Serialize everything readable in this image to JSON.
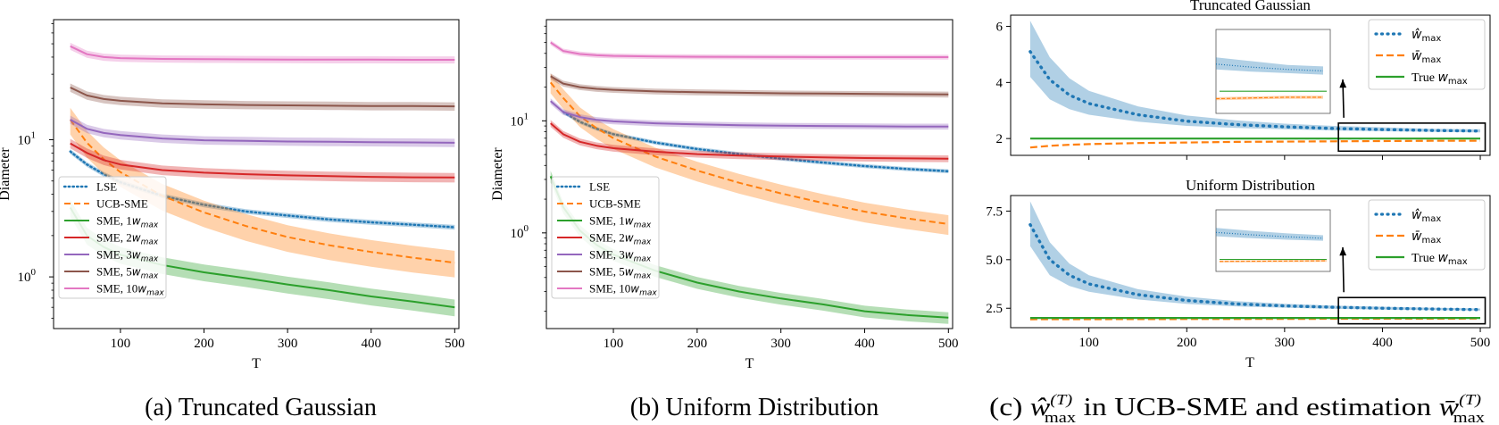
{
  "panels": [
    {
      "id": "a",
      "caption": "(a) Truncated Gaussian",
      "chart_data": {
        "type": "line",
        "yscale": "log",
        "xlabel": "T",
        "ylabel": "Diameter",
        "xlim": [
          20,
          505
        ],
        "ylim": [
          0.42,
          75
        ],
        "xticks": [
          100,
          200,
          300,
          400,
          500
        ],
        "yticks": [
          {
            "value": 1,
            "label": "10",
            "exp": "0"
          },
          {
            "value": 10,
            "label": "10",
            "exp": "1"
          }
        ],
        "series": [
          {
            "name": "LSE",
            "style": "dotted",
            "color": "#1f77b4",
            "x": [
              40,
              60,
              80,
              100,
              150,
              200,
              250,
              300,
              350,
              400,
              450,
              500
            ],
            "y": [
              8.2,
              6.6,
              5.6,
              4.9,
              3.9,
              3.35,
              3.0,
              2.8,
              2.62,
              2.5,
              2.4,
              2.3
            ],
            "band": 0.04
          },
          {
            "name": "UCB-SME",
            "style": "dashed",
            "color": "#ff7f0e",
            "x": [
              40,
              60,
              80,
              100,
              150,
              200,
              250,
              300,
              350,
              400,
              450,
              500
            ],
            "y": [
              14.0,
              9.5,
              7.2,
              5.8,
              3.9,
              2.95,
              2.35,
              1.95,
              1.7,
              1.52,
              1.38,
              1.27
            ],
            "band": 0.22
          },
          {
            "name": "SME, 1",
            "style": "solid",
            "color": "#2ca02c",
            "x": [
              40,
              60,
              80,
              100,
              150,
              200,
              250,
              300,
              350,
              400,
              450,
              500
            ],
            "y": [
              3.2,
              2.0,
              1.65,
              1.45,
              1.22,
              1.08,
              0.98,
              0.88,
              0.8,
              0.72,
              0.66,
              0.6
            ],
            "band": 0.14
          },
          {
            "name": "SME, 2",
            "style": "solid",
            "color": "#d62728",
            "x": [
              40,
              60,
              80,
              100,
              150,
              200,
              250,
              300,
              350,
              400,
              450,
              500
            ],
            "y": [
              9.4,
              8.0,
              7.1,
              6.6,
              6.0,
              5.75,
              5.6,
              5.5,
              5.42,
              5.36,
              5.32,
              5.3
            ],
            "band": 0.08
          },
          {
            "name": "SME, 3",
            "style": "solid",
            "color": "#9467bd",
            "x": [
              40,
              60,
              80,
              100,
              150,
              200,
              250,
              300,
              350,
              400,
              450,
              500
            ],
            "y": [
              14.0,
              12.0,
              11.2,
              10.8,
              10.2,
              9.9,
              9.8,
              9.7,
              9.65,
              9.6,
              9.55,
              9.5
            ],
            "band": 0.07
          },
          {
            "name": "SME, 5",
            "style": "solid",
            "color": "#8c564b",
            "x": [
              40,
              60,
              80,
              100,
              150,
              200,
              250,
              300,
              350,
              400,
              450,
              500
            ],
            "y": [
              24.0,
              21.0,
              19.8,
              19.2,
              18.4,
              18.1,
              17.9,
              17.8,
              17.7,
              17.6,
              17.6,
              17.5
            ],
            "band": 0.07
          },
          {
            "name": "SME, 10",
            "style": "solid",
            "color": "#e377c2",
            "x": [
              40,
              60,
              80,
              100,
              150,
              200,
              250,
              300,
              350,
              400,
              450,
              500
            ],
            "y": [
              48.0,
              42.0,
              40.0,
              39.3,
              38.8,
              38.6,
              38.5,
              38.4,
              38.3,
              38.3,
              38.2,
              38.2
            ],
            "band": 0.06
          }
        ],
        "legend": {
          "position": "lower-left"
        }
      }
    },
    {
      "id": "b",
      "caption": "(b) Uniform Distribution",
      "chart_data": {
        "type": "line",
        "yscale": "log",
        "xlabel": "T",
        "ylabel": "Diameter",
        "xlim": [
          20,
          505
        ],
        "ylim": [
          0.14,
          80
        ],
        "xticks": [
          100,
          200,
          300,
          400,
          500
        ],
        "yticks": [
          {
            "value": 1,
            "label": "10",
            "exp": "0"
          },
          {
            "value": 10,
            "label": "10",
            "exp": "1"
          }
        ],
        "series": [
          {
            "name": "LSE",
            "style": "dotted",
            "color": "#1f77b4",
            "x": [
              40,
              60,
              80,
              100,
              150,
              200,
              250,
              300,
              350,
              400,
              450,
              500
            ],
            "y": [
              12.0,
              9.8,
              8.5,
              7.6,
              6.4,
              5.6,
              5.05,
              4.6,
              4.25,
              3.95,
              3.72,
              3.55
            ],
            "band": 0.04
          },
          {
            "name": "UCB-SME",
            "style": "dashed",
            "color": "#ff7f0e",
            "x": [
              25,
              40,
              60,
              80,
              100,
              150,
              200,
              250,
              300,
              350,
              400,
              450,
              500
            ],
            "y": [
              22.0,
              16.0,
              11.0,
              8.6,
              7.0,
              4.8,
              3.6,
              2.8,
              2.25,
              1.85,
              1.55,
              1.35,
              1.2
            ],
            "band": 0.2
          },
          {
            "name": "SME, 1",
            "style": "solid",
            "color": "#2ca02c",
            "x": [
              25,
              40,
              60,
              80,
              100,
              150,
              200,
              250,
              300,
              350,
              400,
              450,
              500
            ],
            "y": [
              3.2,
              1.7,
              1.05,
              0.78,
              0.64,
              0.46,
              0.36,
              0.3,
              0.26,
              0.23,
              0.2,
              0.185,
              0.175
            ],
            "band": 0.12
          },
          {
            "name": "SME, 2",
            "style": "solid",
            "color": "#d62728",
            "x": [
              25,
              40,
              60,
              80,
              100,
              150,
              200,
              250,
              300,
              350,
              400,
              450,
              500
            ],
            "y": [
              9.5,
              7.6,
              6.5,
              6.0,
              5.7,
              5.3,
              5.05,
              4.9,
              4.8,
              4.72,
              4.66,
              4.62,
              4.6
            ],
            "band": 0.07
          },
          {
            "name": "SME, 3",
            "style": "solid",
            "color": "#9467bd",
            "x": [
              25,
              40,
              60,
              80,
              100,
              150,
              200,
              250,
              300,
              350,
              400,
              450,
              500
            ],
            "y": [
              15.0,
              12.0,
              10.8,
              10.2,
              9.9,
              9.5,
              9.3,
              9.15,
              9.05,
              9.0,
              8.95,
              8.9,
              8.9
            ],
            "band": 0.06
          },
          {
            "name": "SME, 5",
            "style": "solid",
            "color": "#8c564b",
            "x": [
              25,
              40,
              60,
              80,
              100,
              150,
              200,
              250,
              300,
              350,
              400,
              450,
              500
            ],
            "y": [
              25.0,
              21.5,
              20.0,
              19.3,
              18.9,
              18.3,
              18.0,
              17.8,
              17.6,
              17.5,
              17.4,
              17.3,
              17.2
            ],
            "band": 0.06
          },
          {
            "name": "SME, 10",
            "style": "solid",
            "color": "#e377c2",
            "x": [
              25,
              40,
              60,
              80,
              100,
              150,
              200,
              250,
              300,
              350,
              400,
              450,
              500
            ],
            "y": [
              50.0,
              42.0,
              39.5,
              38.5,
              38.0,
              37.5,
              37.3,
              37.2,
              37.1,
              37.0,
              37.0,
              37.0,
              37.0
            ],
            "band": 0.05
          }
        ],
        "legend": {
          "position": "lower-left"
        }
      }
    }
  ],
  "legend_labels": [
    "LSE",
    "UCB-SME",
    "SME, 1",
    "SME, 2",
    "SME, 3",
    "SME, 5",
    "SME, 10"
  ],
  "legend_wmax": [
    "w",
    "max"
  ],
  "panel_c": {
    "caption": [
      "(c) ",
      "ŵ",
      "(T)",
      "max",
      " in UCB-SME and estimation ",
      "w̄",
      "(T)",
      "max"
    ],
    "xlabel": "T",
    "xticks": [
      100,
      200,
      300,
      400,
      500
    ],
    "chart_data": [
      {
        "type": "line",
        "title": "Truncated Gaussian",
        "xlim": [
          20,
          510
        ],
        "ylim": [
          1.4,
          6.4
        ],
        "yticks": [
          2,
          4,
          6
        ],
        "ytick_labels": [
          "2",
          "4",
          "6"
        ],
        "series": [
          {
            "name": "ŵmax",
            "style": "dotted",
            "color": "#1f77b4",
            "x": [
              40,
              60,
              80,
              100,
              150,
              200,
              250,
              300,
              350,
              400,
              450,
              500
            ],
            "y": [
              5.1,
              4.1,
              3.55,
              3.25,
              2.85,
              2.62,
              2.5,
              2.42,
              2.36,
              2.32,
              2.29,
              2.27
            ],
            "lo": [
              4.2,
              3.4,
              3.05,
              2.85,
              2.6,
              2.45,
              2.38,
              2.33,
              2.29,
              2.26,
              2.24,
              2.22
            ],
            "hi": [
              6.2,
              4.9,
              4.15,
              3.7,
              3.15,
              2.82,
              2.65,
              2.53,
              2.45,
              2.4,
              2.35,
              2.33
            ]
          },
          {
            "name": "w̄max",
            "style": "dashed",
            "color": "#ff7f0e",
            "x": [
              40,
              60,
              80,
              100,
              150,
              200,
              250,
              300,
              350,
              400,
              450,
              500
            ],
            "y": [
              1.68,
              1.74,
              1.78,
              1.8,
              1.84,
              1.86,
              1.88,
              1.89,
              1.9,
              1.91,
              1.92,
              1.92
            ]
          },
          {
            "name": "True wmax",
            "style": "solid",
            "color": "#2ca02c",
            "x": [
              40,
              500
            ],
            "y": [
              2.0,
              2.0
            ]
          }
        ],
        "legend_labels": [
          "ŵ",
          "max",
          "w̄",
          "max",
          "True ",
          "w",
          "max"
        ]
      },
      {
        "type": "line",
        "title": "Uniform Distribution",
        "xlim": [
          20,
          510
        ],
        "ylim": [
          1.5,
          8.3
        ],
        "yticks": [
          2.5,
          5.0,
          7.5
        ],
        "ytick_labels": [
          "2.5",
          "5.0",
          "7.5"
        ],
        "series": [
          {
            "name": "ŵmax",
            "style": "dotted",
            "color": "#1f77b4",
            "x": [
              40,
              60,
              80,
              100,
              150,
              200,
              250,
              300,
              350,
              400,
              450,
              500
            ],
            "y": [
              6.8,
              5.0,
              4.2,
              3.75,
              3.2,
              2.9,
              2.72,
              2.62,
              2.55,
              2.5,
              2.46,
              2.43
            ],
            "lo": [
              5.7,
              4.2,
              3.65,
              3.35,
              2.95,
              2.72,
              2.6,
              2.53,
              2.47,
              2.43,
              2.4,
              2.38
            ],
            "hi": [
              8.0,
              5.9,
              4.8,
              4.2,
              3.48,
              3.1,
              2.87,
              2.73,
              2.64,
              2.58,
              2.53,
              2.49
            ]
          },
          {
            "name": "w̄max",
            "style": "dashed",
            "color": "#ff7f0e",
            "x": [
              40,
              500
            ],
            "y": [
              1.93,
              1.97
            ]
          },
          {
            "name": "True wmax",
            "style": "solid",
            "color": "#2ca02c",
            "x": [
              40,
              500
            ],
            "y": [
              2.0,
              2.0
            ]
          }
        ],
        "legend_labels": [
          "ŵ",
          "max",
          "w̄",
          "max",
          "True ",
          "w",
          "max"
        ]
      }
    ]
  }
}
